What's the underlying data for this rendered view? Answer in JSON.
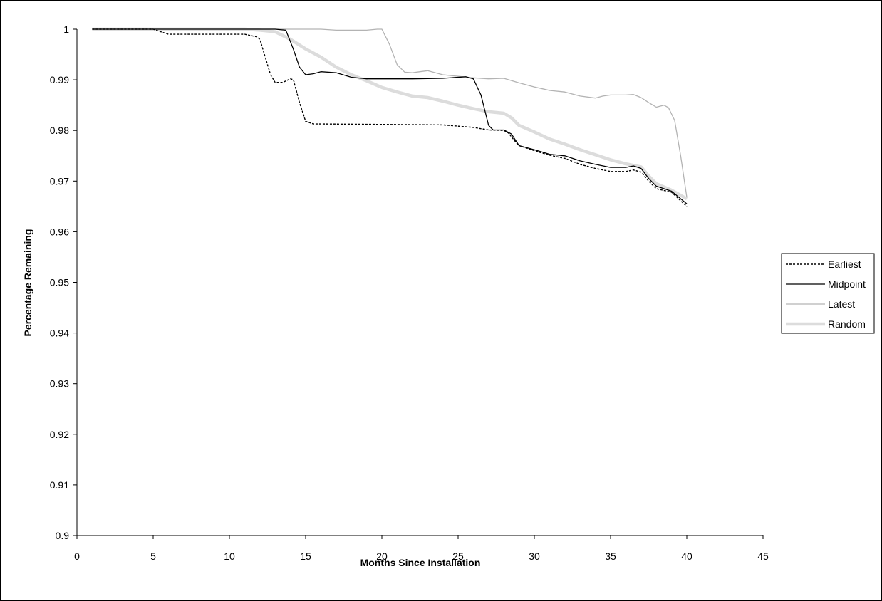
{
  "chart_data": {
    "type": "line",
    "title": "",
    "xlabel": "Months Since Installation",
    "ylabel": "Percentage Remaining",
    "xlim": [
      0,
      45
    ],
    "ylim": [
      0.9,
      1.0
    ],
    "x_ticks": [
      "0",
      "5",
      "10",
      "15",
      "20",
      "25",
      "30",
      "35",
      "40",
      "45"
    ],
    "y_ticks": [
      "0.9",
      "0.91",
      "0.92",
      "0.93",
      "0.94",
      "0.95",
      "0.96",
      "0.97",
      "0.98",
      "0.99",
      "1"
    ],
    "grid": false,
    "legend_position": "right",
    "series": [
      {
        "name": "Earliest",
        "style": "dashed",
        "color": "#000000",
        "points": [
          [
            1,
            1.0
          ],
          [
            5,
            1.0
          ],
          [
            5.5,
            0.9995
          ],
          [
            6,
            0.999
          ],
          [
            11,
            0.999
          ],
          [
            11.8,
            0.9985
          ],
          [
            12,
            0.998
          ],
          [
            12.3,
            0.995
          ],
          [
            12.7,
            0.991
          ],
          [
            13,
            0.9895
          ],
          [
            13.5,
            0.9895
          ],
          [
            14,
            0.9902
          ],
          [
            14.2,
            0.99
          ],
          [
            14.6,
            0.9855
          ],
          [
            15,
            0.9818
          ],
          [
            15.5,
            0.9813
          ],
          [
            20,
            0.9812
          ],
          [
            24,
            0.9811
          ],
          [
            26,
            0.9806
          ],
          [
            27,
            0.9801
          ],
          [
            28,
            0.98
          ],
          [
            28.3,
            0.9795
          ],
          [
            28.7,
            0.978
          ],
          [
            29,
            0.977
          ],
          [
            30,
            0.976
          ],
          [
            31,
            0.9751
          ],
          [
            32,
            0.9745
          ],
          [
            33,
            0.9733
          ],
          [
            34,
            0.9725
          ],
          [
            35,
            0.9719
          ],
          [
            36,
            0.9719
          ],
          [
            36.5,
            0.9722
          ],
          [
            37,
            0.9718
          ],
          [
            37.5,
            0.97
          ],
          [
            38,
            0.9685
          ],
          [
            39,
            0.9678
          ],
          [
            40,
            0.965
          ]
        ]
      },
      {
        "name": "Midpoint",
        "style": "solid",
        "color": "#000000",
        "points": [
          [
            1,
            1.0
          ],
          [
            13,
            1.0
          ],
          [
            13.7,
            0.9998
          ],
          [
            14.2,
            0.996
          ],
          [
            14.6,
            0.9925
          ],
          [
            15,
            0.991
          ],
          [
            15.5,
            0.9912
          ],
          [
            16,
            0.9916
          ],
          [
            17,
            0.9914
          ],
          [
            18,
            0.9905
          ],
          [
            19,
            0.9902
          ],
          [
            20,
            0.9902
          ],
          [
            22,
            0.9902
          ],
          [
            24,
            0.9903
          ],
          [
            25.5,
            0.9906
          ],
          [
            26,
            0.9902
          ],
          [
            26.5,
            0.987
          ],
          [
            27,
            0.981
          ],
          [
            27.3,
            0.9801
          ],
          [
            28,
            0.9801
          ],
          [
            28.5,
            0.9793
          ],
          [
            29,
            0.977
          ],
          [
            30,
            0.9762
          ],
          [
            31,
            0.9753
          ],
          [
            32,
            0.975
          ],
          [
            33,
            0.974
          ],
          [
            34,
            0.9733
          ],
          [
            35,
            0.9727
          ],
          [
            36,
            0.9727
          ],
          [
            36.5,
            0.973
          ],
          [
            37,
            0.9725
          ],
          [
            37.5,
            0.9705
          ],
          [
            38,
            0.969
          ],
          [
            39,
            0.968
          ],
          [
            40,
            0.9655
          ]
        ]
      },
      {
        "name": "Latest",
        "style": "solid",
        "color": "#b3b3b3",
        "points": [
          [
            1,
            1.0
          ],
          [
            15,
            1.0
          ],
          [
            16,
            1.0
          ],
          [
            17,
            0.9998
          ],
          [
            18,
            0.9998
          ],
          [
            19,
            0.9998
          ],
          [
            19.7,
            1.0
          ],
          [
            20,
            1.0
          ],
          [
            20.5,
            0.997
          ],
          [
            21,
            0.993
          ],
          [
            21.5,
            0.9915
          ],
          [
            22,
            0.9914
          ],
          [
            22.5,
            0.9916
          ],
          [
            23,
            0.9918
          ],
          [
            23.5,
            0.9914
          ],
          [
            24,
            0.991
          ],
          [
            25,
            0.9907
          ],
          [
            26,
            0.9904
          ],
          [
            27,
            0.9902
          ],
          [
            28,
            0.9903
          ],
          [
            29,
            0.9894
          ],
          [
            30,
            0.9886
          ],
          [
            31,
            0.9879
          ],
          [
            32,
            0.9876
          ],
          [
            33,
            0.9868
          ],
          [
            34,
            0.9864
          ],
          [
            34.5,
            0.9868
          ],
          [
            35,
            0.987
          ],
          [
            36,
            0.987
          ],
          [
            36.5,
            0.9871
          ],
          [
            37,
            0.9865
          ],
          [
            37.5,
            0.9855
          ],
          [
            38,
            0.9846
          ],
          [
            38.5,
            0.985
          ],
          [
            38.8,
            0.9845
          ],
          [
            39.2,
            0.982
          ],
          [
            39.6,
            0.975
          ],
          [
            40,
            0.9668
          ]
        ]
      },
      {
        "name": "Random",
        "style": "thick",
        "color": "#dcdcdc",
        "points": [
          [
            1,
            1.0
          ],
          [
            11,
            1.0
          ],
          [
            12,
            0.9998
          ],
          [
            13,
            0.9995
          ],
          [
            14,
            0.998
          ],
          [
            15,
            0.9961
          ],
          [
            16,
            0.9945
          ],
          [
            17,
            0.9925
          ],
          [
            18,
            0.991
          ],
          [
            19,
            0.9898
          ],
          [
            20,
            0.9885
          ],
          [
            21,
            0.9876
          ],
          [
            22,
            0.9868
          ],
          [
            23,
            0.9865
          ],
          [
            24,
            0.9858
          ],
          [
            25,
            0.985
          ],
          [
            26,
            0.9843
          ],
          [
            27,
            0.9837
          ],
          [
            28,
            0.9834
          ],
          [
            28.5,
            0.9825
          ],
          [
            29,
            0.981
          ],
          [
            30,
            0.9797
          ],
          [
            31,
            0.9783
          ],
          [
            32,
            0.9773
          ],
          [
            33,
            0.9762
          ],
          [
            34,
            0.9752
          ],
          [
            35,
            0.9742
          ],
          [
            36,
            0.9734
          ],
          [
            37,
            0.9728
          ],
          [
            37.5,
            0.971
          ],
          [
            38,
            0.9695
          ],
          [
            39,
            0.9682
          ],
          [
            40,
            0.9665
          ]
        ]
      }
    ]
  }
}
